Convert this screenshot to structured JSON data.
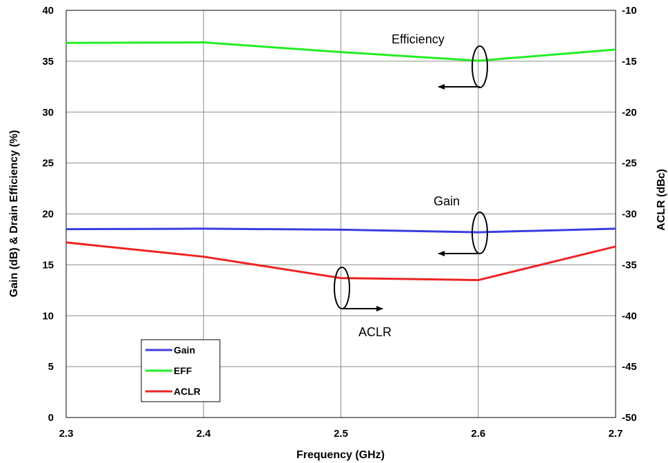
{
  "chart_data": {
    "type": "line",
    "xlabel": "Frequency (GHz)",
    "ylabel_left": "Gain (dB) & Drain Efficiency (%)",
    "ylabel_right": "ACLR (dBc)",
    "x": [
      2.3,
      2.4,
      2.5,
      2.6,
      2.7
    ],
    "xlim": [
      2.3,
      2.7
    ],
    "ylim_left": [
      0,
      40
    ],
    "ylim_right": [
      -50,
      -10
    ],
    "x_ticks": [
      "2.3",
      "2.4",
      "2.5",
      "2.6",
      "2.7"
    ],
    "y_ticks_left": [
      "0",
      "5",
      "10",
      "15",
      "20",
      "25",
      "30",
      "35",
      "40"
    ],
    "y_ticks_right": [
      "-50",
      "-45",
      "-40",
      "-35",
      "-30",
      "-25",
      "-20",
      "-15",
      "-10"
    ],
    "grid": true,
    "legend_position": "bottom-left",
    "series": [
      {
        "name": "Gain",
        "axis": "left",
        "color": "#3b3be0",
        "values": [
          18.5,
          18.55,
          18.45,
          18.2,
          18.55
        ]
      },
      {
        "name": "EFF",
        "axis": "left",
        "color": "#22ee22",
        "values": [
          36.8,
          36.85,
          35.9,
          35.05,
          36.15
        ]
      },
      {
        "name": "ACLR",
        "axis": "right",
        "color": "#ee2222",
        "values": [
          -32.8,
          -34.2,
          -36.3,
          -36.5,
          -33.2
        ]
      }
    ],
    "annotations": [
      {
        "text": "Efficiency",
        "arrow": "left"
      },
      {
        "text": "Gain",
        "arrow": "left"
      },
      {
        "text": "ACLR",
        "arrow": "right"
      }
    ]
  }
}
